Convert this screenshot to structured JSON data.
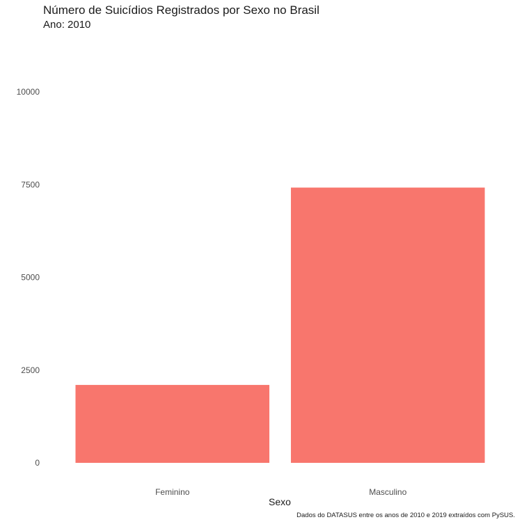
{
  "chart_data": {
    "type": "bar",
    "title": "Número de Suicídios Registrados por Sexo no Brasil",
    "subtitle": "Ano: 2010",
    "xlabel": "Sexo",
    "ylabel": "",
    "caption": "Dados do DATASUS entre os anos de 2010 e 2019 extraídos com PySUS.",
    "categories": [
      "Feminino",
      "Masculino"
    ],
    "values": [
      2100,
      7420
    ],
    "ylim": [
      0,
      10000
    ],
    "yticks": [
      0,
      2500,
      5000,
      7500,
      10000
    ],
    "ytick_labels": [
      "0",
      "2500",
      "5000",
      "7500",
      "10000"
    ],
    "bar_color": "#F8766D",
    "grid": false,
    "legend": "none"
  }
}
